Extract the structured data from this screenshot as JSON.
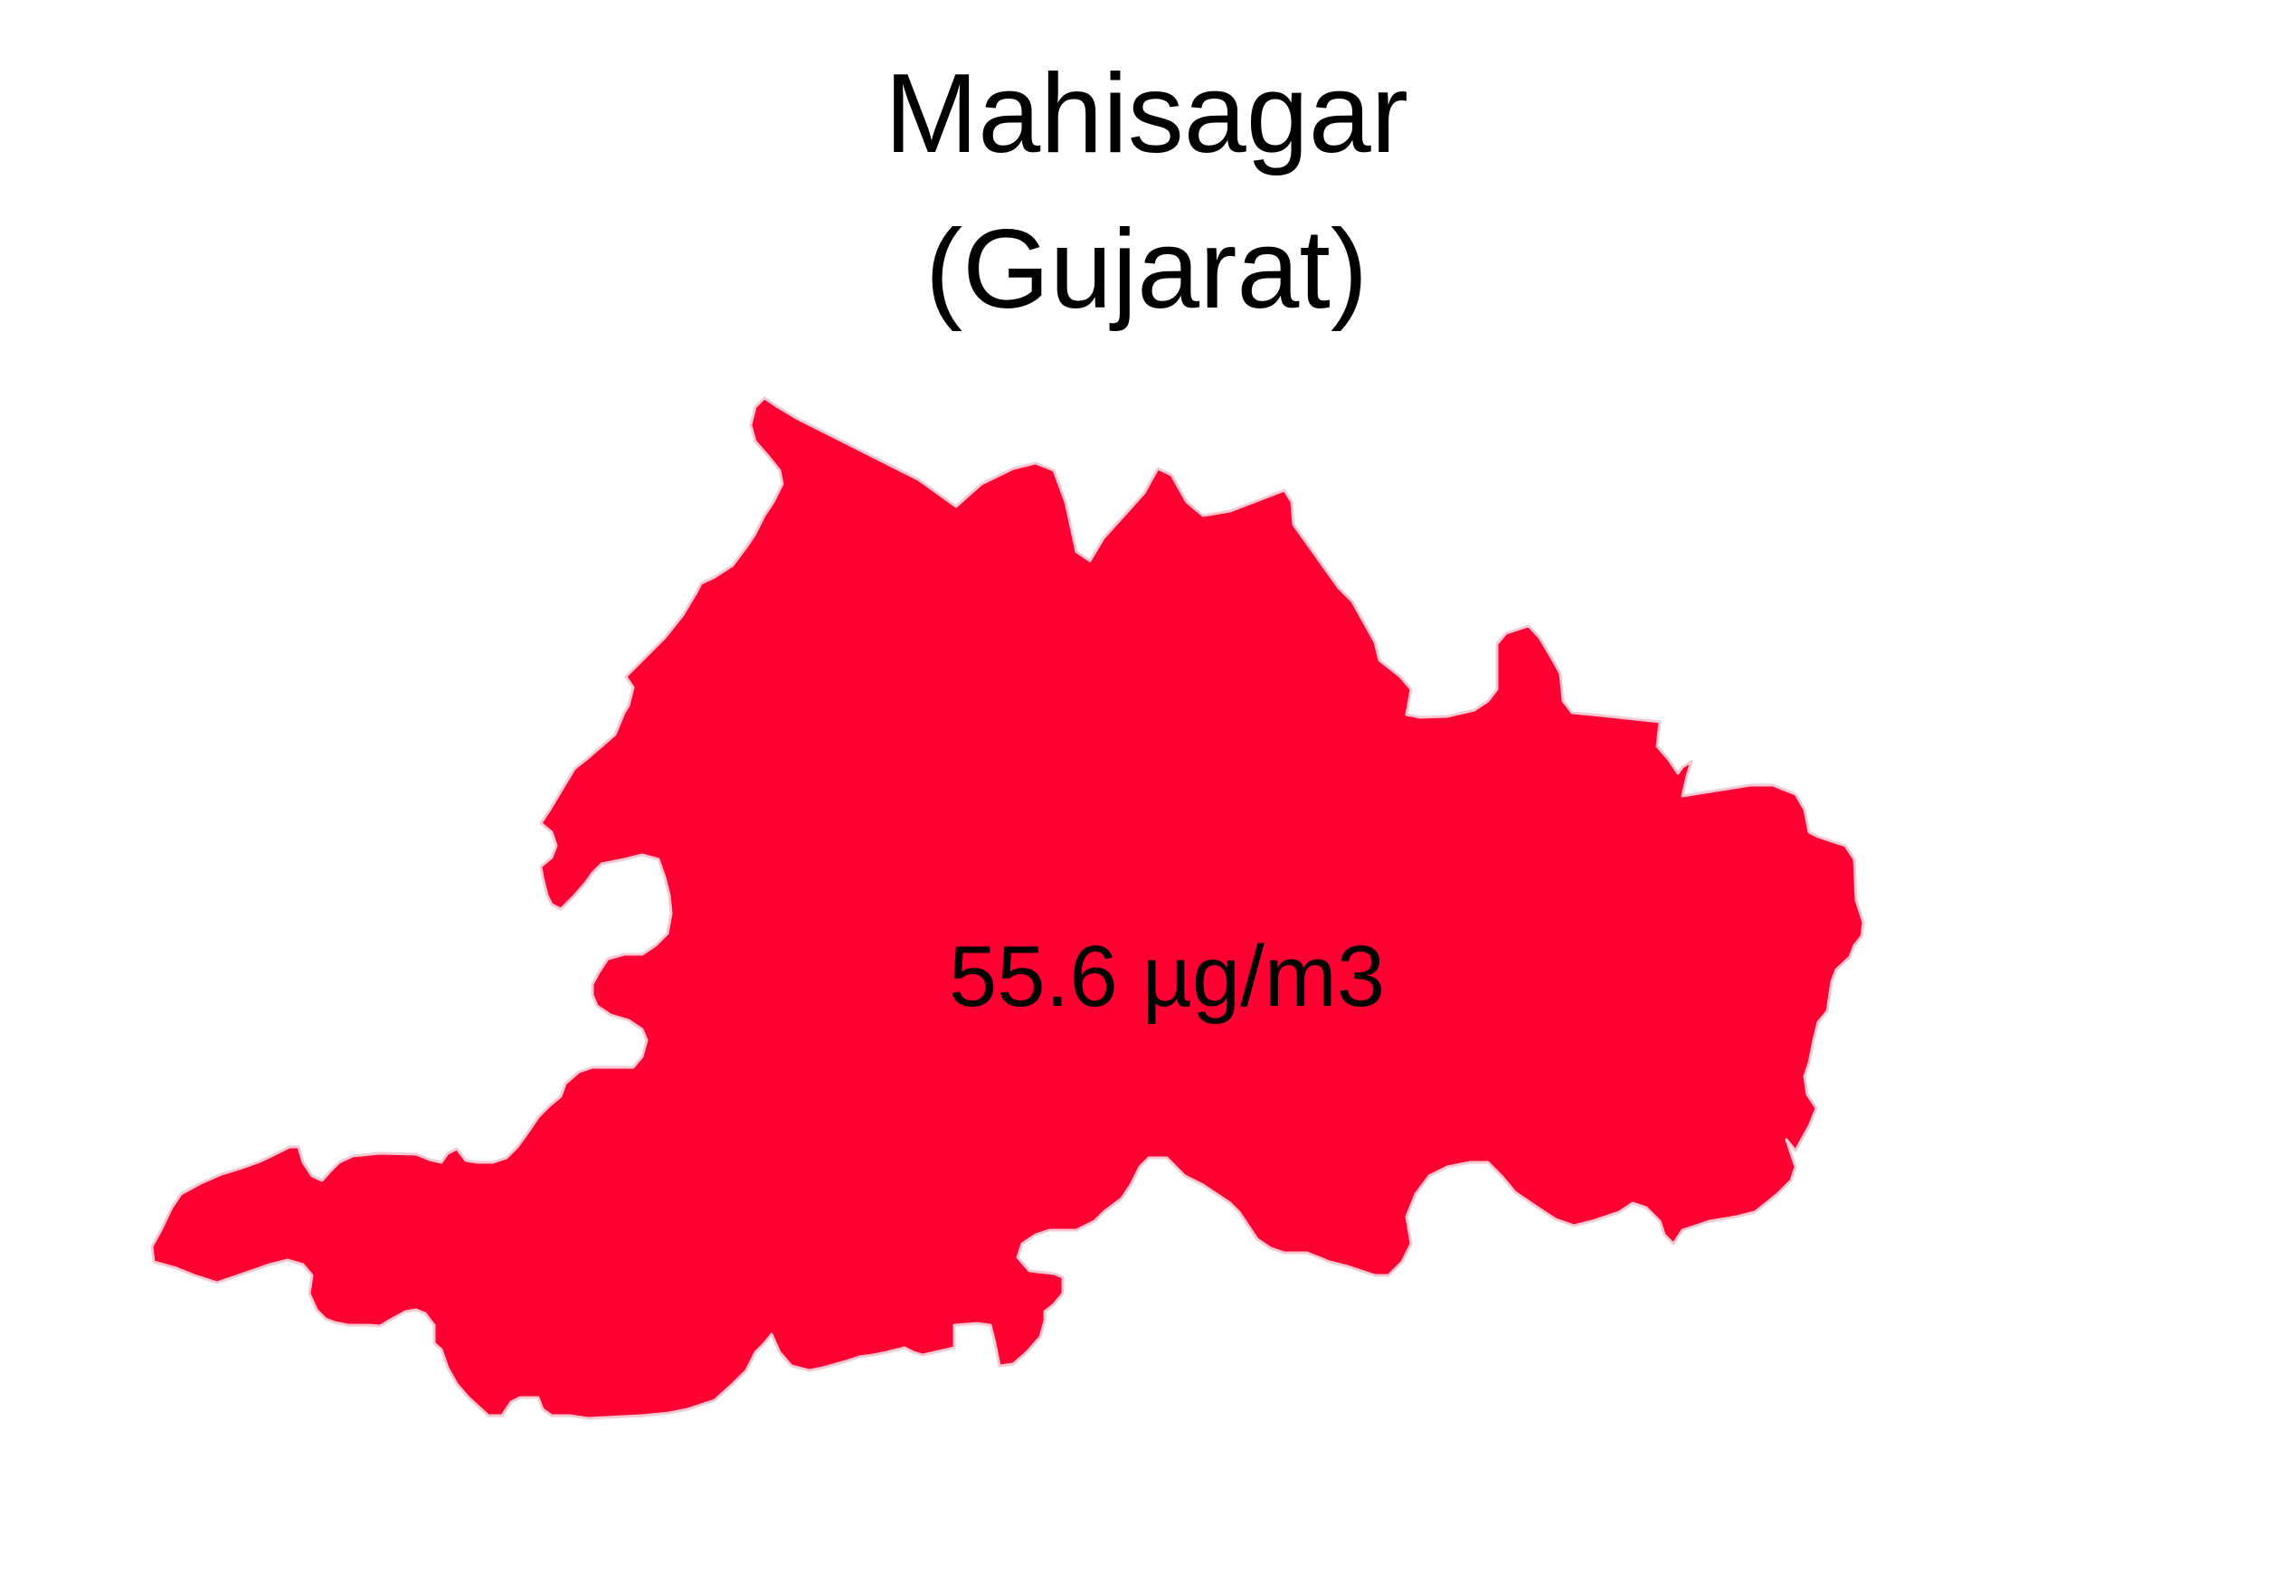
{
  "map": {
    "title": "Mahisagar",
    "subtitle": "(Gujarat)",
    "region_fill": "#FF0033",
    "region_stroke": "#F4C9D2",
    "value_label": "55.6 µg/m3"
  }
}
